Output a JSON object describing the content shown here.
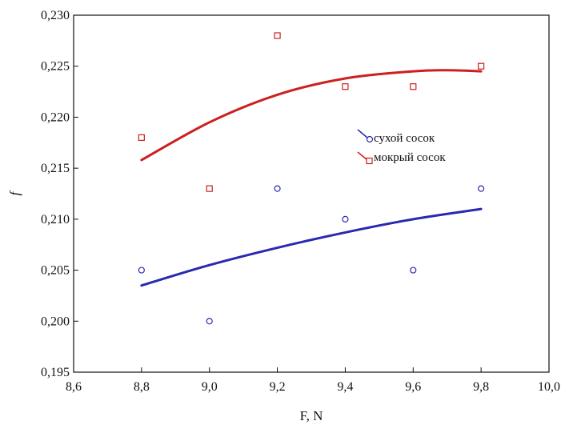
{
  "chart_data": {
    "type": "scatter",
    "title": "",
    "xlabel": "F, N",
    "ylabel": "f",
    "xlim": [
      8.6,
      10.0
    ],
    "ylim": [
      0.195,
      0.23
    ],
    "x_ticks": [
      "8,6",
      "8,8",
      "9,0",
      "9,2",
      "9,4",
      "9,6",
      "9,8",
      "10,0"
    ],
    "x_tick_values": [
      8.6,
      8.8,
      9.0,
      9.2,
      9.4,
      9.6,
      9.8,
      10.0
    ],
    "y_ticks": [
      "0,195",
      "0,200",
      "0,205",
      "0,210",
      "0,215",
      "0,220",
      "0,225",
      "0,230"
    ],
    "y_tick_values": [
      0.195,
      0.2,
      0.205,
      0.21,
      0.215,
      0.22,
      0.225,
      0.23
    ],
    "grid": false,
    "legend_position": "middle-right",
    "series": [
      {
        "name": "сухой сосок",
        "marker": "circle",
        "color": "#2a2ab0",
        "x": [
          8.8,
          9.0,
          9.2,
          9.4,
          9.6,
          9.8
        ],
        "y": [
          0.205,
          0.2,
          0.213,
          0.21,
          0.205,
          0.213
        ],
        "fit": {
          "x": [
            8.8,
            9.0,
            9.2,
            9.4,
            9.6,
            9.8
          ],
          "y": [
            0.2035,
            0.2055,
            0.2072,
            0.2087,
            0.21,
            0.211
          ]
        }
      },
      {
        "name": "мокрый сосок",
        "marker": "square",
        "color": "#cc2020",
        "x": [
          8.8,
          9.0,
          9.2,
          9.4,
          9.6,
          9.8
        ],
        "y": [
          0.218,
          0.213,
          0.228,
          0.223,
          0.223,
          0.225
        ],
        "fit": {
          "x": [
            8.8,
            9.0,
            9.2,
            9.4,
            9.6,
            9.7,
            9.8
          ],
          "y": [
            0.2158,
            0.2195,
            0.2222,
            0.2238,
            0.2245,
            0.2246,
            0.2245
          ]
        }
      }
    ]
  }
}
